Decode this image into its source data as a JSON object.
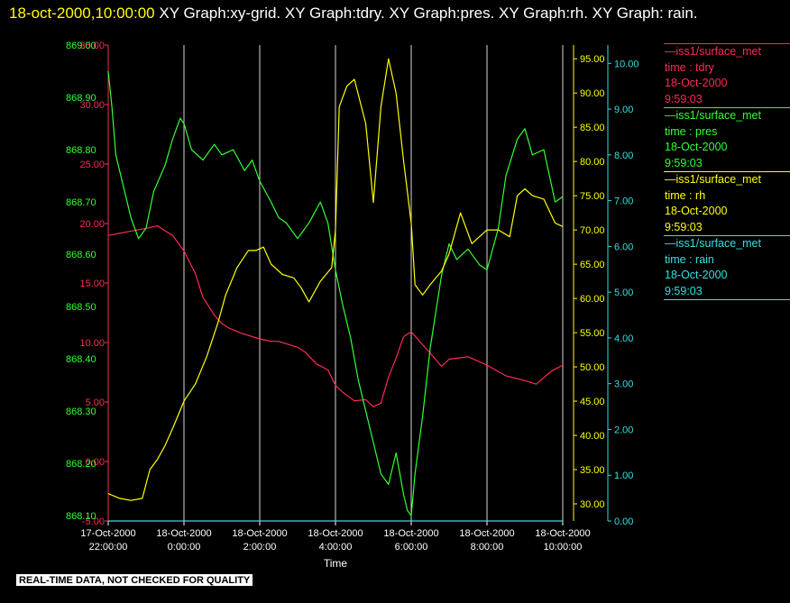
{
  "title": {
    "date": "18-oct-2000,10:00:00",
    "graphs": "XY Graph:xy-grid.  XY Graph:tdry.  XY Graph:pres.  XY Graph:rh.  XY Graph: rain."
  },
  "footer_note": "REAL-TIME DATA, NOT CHECKED FOR QUALITY",
  "legend": [
    {
      "source": "—iss1/surface_met",
      "field": "time : tdry",
      "date": "18-Oct-2000",
      "time": "9:59:03",
      "color": "#ff2a55"
    },
    {
      "source": "—iss1/surface_met",
      "field": "time : pres",
      "date": "18-Oct-2000",
      "time": "9:59:03",
      "color": "#33ff33"
    },
    {
      "source": "—iss1/surface_met",
      "field": "time : rh",
      "date": "18-Oct-2000",
      "time": "9:59:03",
      "color": "#ffff00"
    },
    {
      "source": "—iss1/surface_met",
      "field": "time : rain",
      "date": "18-Oct-2000",
      "time": "9:59:03",
      "color": "#33e0e0"
    }
  ],
  "chart_data": {
    "type": "line",
    "xlabel": "Time",
    "x_range_hours": [
      -2,
      10
    ],
    "x_ticks": [
      {
        "h": -2,
        "date": "17-Oct-2000",
        "time": "22:00:00"
      },
      {
        "h": 0,
        "date": "18-Oct-2000",
        "time": "0:00:00"
      },
      {
        "h": 2,
        "date": "18-Oct-2000",
        "time": "2:00:00"
      },
      {
        "h": 4,
        "date": "18-Oct-2000",
        "time": "4:00:00"
      },
      {
        "h": 6,
        "date": "18-Oct-2000",
        "time": "6:00:00"
      },
      {
        "h": 8,
        "date": "18-Oct-2000",
        "time": "8:00:00"
      },
      {
        "h": 10,
        "date": "18-Oct-2000",
        "time": "10:00:00"
      }
    ],
    "grid": "vertical lines at x ticks",
    "axes": {
      "tdry": {
        "color": "#ff2a55",
        "range": [
          -5,
          35
        ],
        "ticks": [
          "-5.00",
          "0.00",
          "5.00",
          "10.00",
          "15.00",
          "20.00",
          "25.00",
          "30.00",
          "35.00"
        ]
      },
      "pres": {
        "color": "#33ff33",
        "range": [
          868.09,
          869.0
        ],
        "ticks": [
          "868.10",
          "868.20",
          "868.30",
          "868.40",
          "868.50",
          "868.60",
          "868.70",
          "868.80",
          "868.90",
          "869.00"
        ]
      },
      "rh": {
        "color": "#ffff00",
        "range": [
          27.5,
          97.0
        ],
        "ticks": [
          "30.00",
          "35.00",
          "40.00",
          "45.00",
          "50.00",
          "55.00",
          "60.00",
          "65.00",
          "70.00",
          "75.00",
          "80.00",
          "85.00",
          "90.00",
          "95.00"
        ]
      },
      "rain": {
        "color": "#33e0e0",
        "range": [
          0,
          10.4
        ],
        "ticks": [
          "0.00",
          "1.00",
          "2.00",
          "3.00",
          "4.00",
          "5.00",
          "6.00",
          "7.00",
          "8.00",
          "9.00",
          "10.00"
        ]
      }
    },
    "series": [
      {
        "name": "tdry",
        "axis": "tdry",
        "x": [
          -2.0,
          -1.5,
          -1.0,
          -0.7,
          -0.3,
          0.0,
          0.3,
          0.5,
          0.8,
          1.0,
          1.2,
          1.5,
          2.0,
          2.3,
          2.5,
          3.0,
          3.2,
          3.5,
          3.8,
          4.0,
          4.2,
          4.5,
          4.8,
          5.0,
          5.2,
          5.4,
          5.6,
          5.8,
          6.0,
          6.5,
          6.8,
          7.0,
          7.5,
          8.0,
          8.5,
          9.0,
          9.3,
          9.7,
          10.0
        ],
        "y": [
          19.0,
          19.3,
          19.6,
          19.8,
          19.0,
          17.7,
          15.8,
          13.8,
          12.3,
          11.6,
          11.2,
          10.8,
          10.3,
          10.1,
          10.1,
          9.6,
          9.2,
          8.2,
          7.7,
          6.4,
          5.8,
          5.1,
          5.2,
          4.6,
          4.9,
          7.1,
          8.7,
          10.5,
          10.9,
          9.1,
          8.0,
          8.6,
          8.8,
          8.1,
          7.2,
          6.8,
          6.5,
          7.6,
          8.1
        ]
      },
      {
        "name": "pres",
        "axis": "pres",
        "x": [
          -2.0,
          -1.9,
          -1.8,
          -1.6,
          -1.4,
          -1.2,
          -1.0,
          -0.8,
          -0.5,
          -0.3,
          -0.1,
          0.0,
          0.2,
          0.5,
          0.8,
          1.0,
          1.3,
          1.6,
          1.8,
          2.0,
          2.3,
          2.5,
          2.7,
          3.0,
          3.3,
          3.6,
          3.8,
          4.0,
          4.2,
          4.4,
          4.6,
          4.8,
          5.0,
          5.2,
          5.4,
          5.6,
          5.8,
          5.9,
          6.0,
          6.1,
          6.3,
          6.5,
          6.8,
          7.0,
          7.2,
          7.5,
          7.8,
          8.0,
          8.3,
          8.5,
          8.8,
          9.0,
          9.2,
          9.5,
          9.8,
          10.0
        ],
        "y": [
          868.95,
          868.88,
          868.79,
          868.73,
          868.67,
          868.63,
          868.65,
          868.72,
          868.77,
          868.82,
          868.86,
          868.85,
          868.8,
          868.78,
          868.81,
          868.79,
          868.8,
          868.76,
          868.78,
          868.74,
          868.7,
          868.67,
          868.66,
          868.63,
          868.66,
          868.7,
          868.66,
          868.57,
          868.5,
          868.44,
          868.36,
          868.3,
          868.24,
          868.18,
          868.16,
          868.22,
          868.14,
          868.11,
          868.1,
          868.18,
          868.29,
          868.42,
          868.56,
          868.62,
          868.59,
          868.61,
          868.58,
          868.57,
          868.65,
          868.75,
          868.82,
          868.84,
          868.79,
          868.8,
          868.7,
          868.71
        ]
      },
      {
        "name": "rh",
        "axis": "rh",
        "x": [
          -2.0,
          -1.7,
          -1.4,
          -1.1,
          -0.9,
          -0.7,
          -0.5,
          -0.3,
          0.0,
          0.3,
          0.6,
          0.9,
          1.1,
          1.4,
          1.7,
          1.9,
          2.1,
          2.3,
          2.6,
          2.9,
          3.1,
          3.3,
          3.6,
          3.9,
          4.0,
          4.1,
          4.3,
          4.5,
          4.8,
          5.0,
          5.2,
          5.4,
          5.6,
          5.8,
          6.0,
          6.1,
          6.3,
          6.5,
          6.8,
          7.0,
          7.3,
          7.6,
          8.0,
          8.3,
          8.6,
          8.8,
          9.0,
          9.2,
          9.5,
          9.8,
          10.0
        ],
        "y": [
          31.5,
          30.8,
          30.5,
          30.8,
          35.0,
          36.5,
          38.5,
          41.0,
          45.0,
          47.5,
          51.5,
          56.5,
          60.5,
          64.5,
          67.0,
          67.0,
          67.5,
          65.0,
          63.5,
          63.0,
          61.5,
          59.5,
          62.5,
          64.5,
          70.0,
          88.0,
          91.0,
          92.0,
          85.5,
          74.0,
          88.0,
          95.0,
          90.0,
          80.0,
          71.0,
          62.0,
          60.5,
          62.0,
          64.0,
          66.5,
          72.5,
          68.0,
          70.0,
          70.0,
          69.0,
          75.0,
          76.0,
          75.0,
          74.5,
          71.0,
          70.5
        ]
      },
      {
        "name": "rain",
        "axis": "rain",
        "x": [
          -2.0,
          10.0
        ],
        "y": [
          0.0,
          0.0
        ]
      }
    ]
  }
}
